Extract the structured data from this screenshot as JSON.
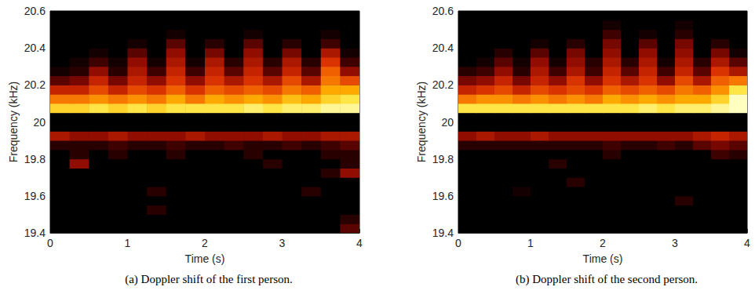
{
  "chart_data": [
    {
      "type": "heatmap",
      "title": "(a) Doppler shift of the first person.",
      "xlabel": "Time (s)",
      "ylabel": "Frequency (kHz)",
      "xlim": [
        0,
        4
      ],
      "xticks": [
        0,
        1,
        2,
        3,
        4
      ],
      "ylim": [
        19.4,
        20.6
      ],
      "yticks": [
        19.4,
        19.6,
        19.8,
        20,
        20.2,
        20.4,
        20.6
      ],
      "grid": false,
      "x": [
        0,
        0.25,
        0.5,
        0.75,
        1,
        1.25,
        1.5,
        1.75,
        2,
        2.25,
        2.5,
        2.75,
        3,
        3.25,
        3.5,
        3.75
      ],
      "y": [
        19.4,
        19.45,
        19.5,
        19.55,
        19.6,
        19.65,
        19.7,
        19.75,
        19.8,
        19.85,
        19.9,
        19.95,
        20,
        20.05,
        20.1,
        20.15,
        20.2,
        20.25,
        20.3,
        20.35,
        20.4,
        20.45,
        20.5,
        20.55
      ],
      "cells": [
        [
          0,
          0,
          0,
          0,
          0,
          0,
          0,
          0,
          0,
          0,
          0,
          0,
          0,
          0,
          0,
          0.2
        ],
        [
          0,
          0,
          0,
          0,
          0,
          0,
          0,
          0,
          0,
          0,
          0,
          0,
          0,
          0,
          0,
          0.1
        ],
        [
          0,
          0,
          0,
          0,
          0,
          0.1,
          0,
          0,
          0,
          0,
          0,
          0,
          0,
          0,
          0,
          0
        ],
        [
          0,
          0,
          0,
          0,
          0,
          0,
          0,
          0,
          0,
          0,
          0,
          0,
          0,
          0,
          0,
          0
        ],
        [
          0,
          0,
          0,
          0,
          0,
          0.1,
          0,
          0,
          0,
          0,
          0,
          0,
          0,
          0.1,
          0,
          0
        ],
        [
          0,
          0,
          0,
          0,
          0,
          0,
          0,
          0,
          0,
          0,
          0,
          0,
          0,
          0,
          0,
          0
        ],
        [
          0,
          0,
          0,
          0,
          0,
          0,
          0,
          0,
          0,
          0,
          0,
          0,
          0,
          0,
          0.1,
          0.3
        ],
        [
          0,
          0.3,
          0,
          0,
          0,
          0,
          0,
          0,
          0,
          0,
          0,
          0.1,
          0,
          0,
          0,
          0.1
        ],
        [
          0,
          0.1,
          0,
          0.1,
          0,
          0,
          0.1,
          0,
          0,
          0,
          0.1,
          0,
          0,
          0,
          0.1,
          0.1
        ],
        [
          0.1,
          0.1,
          0.1,
          0.15,
          0.1,
          0.1,
          0.15,
          0.1,
          0.1,
          0.15,
          0.1,
          0.1,
          0.15,
          0.1,
          0.15,
          0.2
        ],
        [
          0.35,
          0.3,
          0.3,
          0.35,
          0.3,
          0.3,
          0.3,
          0.35,
          0.3,
          0.3,
          0.3,
          0.35,
          0.3,
          0.3,
          0.35,
          0.35
        ],
        [
          0,
          0,
          0,
          0,
          0,
          0,
          0,
          0,
          0,
          0,
          0,
          0,
          0,
          0,
          0,
          0
        ],
        [
          0,
          0,
          0,
          0,
          0,
          0,
          0,
          0,
          0,
          0,
          0,
          0,
          0,
          0,
          0,
          0
        ],
        [
          0.8,
          0.8,
          0.85,
          0.8,
          0.85,
          0.8,
          0.85,
          0.85,
          0.85,
          0.85,
          0.9,
          0.85,
          0.9,
          0.9,
          0.95,
          0.95
        ],
        [
          0.6,
          0.6,
          0.65,
          0.6,
          0.65,
          0.6,
          0.7,
          0.6,
          0.7,
          0.65,
          0.7,
          0.65,
          0.75,
          0.7,
          0.8,
          0.85
        ],
        [
          0.4,
          0.4,
          0.5,
          0.4,
          0.5,
          0.45,
          0.55,
          0.45,
          0.55,
          0.5,
          0.55,
          0.5,
          0.6,
          0.55,
          0.7,
          0.7
        ],
        [
          0.2,
          0.25,
          0.4,
          0.25,
          0.4,
          0.3,
          0.45,
          0.3,
          0.45,
          0.35,
          0.45,
          0.35,
          0.5,
          0.35,
          0.6,
          0.5
        ],
        [
          0.05,
          0.1,
          0.3,
          0.1,
          0.35,
          0.15,
          0.4,
          0.15,
          0.4,
          0.2,
          0.4,
          0.2,
          0.4,
          0.2,
          0.55,
          0.3
        ],
        [
          0,
          0.05,
          0.15,
          0.05,
          0.3,
          0.05,
          0.35,
          0.05,
          0.35,
          0.1,
          0.35,
          0.1,
          0.35,
          0.1,
          0.45,
          0.15
        ],
        [
          0,
          0,
          0.05,
          0,
          0.2,
          0,
          0.3,
          0,
          0.25,
          0,
          0.3,
          0,
          0.25,
          0,
          0.35,
          0.05
        ],
        [
          0,
          0,
          0,
          0,
          0.05,
          0,
          0.2,
          0,
          0.1,
          0,
          0.2,
          0,
          0.1,
          0,
          0.15,
          0
        ],
        [
          0,
          0,
          0,
          0,
          0,
          0,
          0.05,
          0,
          0,
          0,
          0.05,
          0,
          0,
          0,
          0.05,
          0
        ],
        [
          0,
          0,
          0,
          0,
          0,
          0,
          0,
          0,
          0,
          0,
          0,
          0,
          0,
          0,
          0,
          0
        ],
        [
          0,
          0,
          0,
          0,
          0,
          0,
          0,
          0,
          0,
          0,
          0,
          0,
          0,
          0,
          0,
          0
        ]
      ]
    },
    {
      "type": "heatmap",
      "title": "(b) Doppler shift of the second person.",
      "xlabel": "Time (s)",
      "ylabel": "Frequency (kHz)",
      "xlim": [
        0,
        4
      ],
      "xticks": [
        0,
        1,
        2,
        3,
        4
      ],
      "ylim": [
        19.4,
        20.6
      ],
      "yticks": [
        19.4,
        19.6,
        19.8,
        20,
        20.2,
        20.4,
        20.6
      ],
      "grid": false,
      "x": [
        0,
        0.25,
        0.5,
        0.75,
        1,
        1.25,
        1.5,
        1.75,
        2,
        2.25,
        2.5,
        2.75,
        3,
        3.25,
        3.5,
        3.75
      ],
      "y": [
        19.4,
        19.45,
        19.5,
        19.55,
        19.6,
        19.65,
        19.7,
        19.75,
        19.8,
        19.85,
        19.9,
        19.95,
        20,
        20.05,
        20.1,
        20.15,
        20.2,
        20.25,
        20.3,
        20.35,
        20.4,
        20.45,
        20.5,
        20.55
      ],
      "cells": [
        [
          0,
          0,
          0,
          0,
          0,
          0,
          0,
          0,
          0,
          0,
          0,
          0,
          0,
          0,
          0,
          0
        ],
        [
          0,
          0,
          0,
          0,
          0,
          0,
          0,
          0,
          0,
          0,
          0,
          0,
          0,
          0,
          0,
          0
        ],
        [
          0,
          0,
          0,
          0,
          0,
          0,
          0,
          0,
          0,
          0,
          0,
          0,
          0,
          0,
          0,
          0
        ],
        [
          0,
          0,
          0,
          0,
          0,
          0,
          0,
          0,
          0,
          0,
          0,
          0,
          0.1,
          0,
          0,
          0
        ],
        [
          0,
          0,
          0,
          0.05,
          0,
          0,
          0,
          0,
          0,
          0,
          0,
          0,
          0,
          0,
          0,
          0
        ],
        [
          0,
          0,
          0,
          0,
          0,
          0,
          0.1,
          0,
          0,
          0,
          0,
          0,
          0,
          0,
          0,
          0
        ],
        [
          0,
          0,
          0,
          0,
          0,
          0,
          0,
          0,
          0,
          0,
          0,
          0,
          0,
          0,
          0,
          0
        ],
        [
          0,
          0,
          0,
          0,
          0,
          0.1,
          0,
          0,
          0,
          0,
          0,
          0,
          0,
          0,
          0,
          0
        ],
        [
          0,
          0,
          0,
          0,
          0,
          0,
          0,
          0,
          0.1,
          0,
          0,
          0,
          0,
          0,
          0.15,
          0.1
        ],
        [
          0.1,
          0.1,
          0.1,
          0.1,
          0.1,
          0.1,
          0.1,
          0.1,
          0.15,
          0.1,
          0.1,
          0.15,
          0.1,
          0.2,
          0.25,
          0.2
        ],
        [
          0.3,
          0.35,
          0.3,
          0.3,
          0.35,
          0.3,
          0.3,
          0.3,
          0.3,
          0.3,
          0.3,
          0.3,
          0.3,
          0.35,
          0.4,
          0.35
        ],
        [
          0,
          0,
          0,
          0,
          0,
          0,
          0,
          0,
          0,
          0,
          0,
          0,
          0,
          0,
          0,
          0
        ],
        [
          0,
          0,
          0,
          0,
          0,
          0,
          0,
          0,
          0,
          0,
          0,
          0,
          0,
          0,
          0,
          0
        ],
        [
          0.85,
          0.85,
          0.85,
          0.85,
          0.85,
          0.85,
          0.85,
          0.85,
          0.85,
          0.85,
          0.9,
          0.85,
          0.9,
          0.9,
          0.95,
          1
        ],
        [
          0.6,
          0.65,
          0.65,
          0.6,
          0.65,
          0.6,
          0.65,
          0.6,
          0.7,
          0.65,
          0.7,
          0.65,
          0.7,
          0.7,
          0.8,
          1
        ],
        [
          0.4,
          0.45,
          0.5,
          0.4,
          0.5,
          0.45,
          0.5,
          0.45,
          0.55,
          0.5,
          0.55,
          0.5,
          0.6,
          0.55,
          0.65,
          0.85
        ],
        [
          0.25,
          0.3,
          0.4,
          0.25,
          0.4,
          0.3,
          0.45,
          0.3,
          0.45,
          0.35,
          0.45,
          0.3,
          0.5,
          0.35,
          0.55,
          0.6
        ],
        [
          0.1,
          0.15,
          0.3,
          0.1,
          0.35,
          0.15,
          0.35,
          0.15,
          0.4,
          0.2,
          0.4,
          0.15,
          0.4,
          0.2,
          0.45,
          0.35
        ],
        [
          0,
          0.05,
          0.2,
          0.05,
          0.3,
          0.05,
          0.3,
          0.1,
          0.35,
          0.1,
          0.35,
          0.05,
          0.35,
          0.1,
          0.35,
          0.2
        ],
        [
          0,
          0,
          0.1,
          0,
          0.2,
          0,
          0.25,
          0,
          0.3,
          0,
          0.3,
          0,
          0.3,
          0,
          0.25,
          0.05
        ],
        [
          0,
          0,
          0,
          0,
          0.05,
          0,
          0.1,
          0,
          0.25,
          0,
          0.2,
          0,
          0.25,
          0,
          0.1,
          0
        ],
        [
          0,
          0,
          0,
          0,
          0,
          0,
          0,
          0,
          0.15,
          0,
          0.05,
          0,
          0.1,
          0,
          0,
          0
        ],
        [
          0,
          0,
          0,
          0,
          0,
          0,
          0,
          0,
          0.05,
          0,
          0,
          0,
          0.05,
          0,
          0,
          0
        ],
        [
          0,
          0,
          0,
          0,
          0,
          0,
          0,
          0,
          0,
          0,
          0,
          0,
          0,
          0,
          0,
          0
        ]
      ]
    }
  ]
}
